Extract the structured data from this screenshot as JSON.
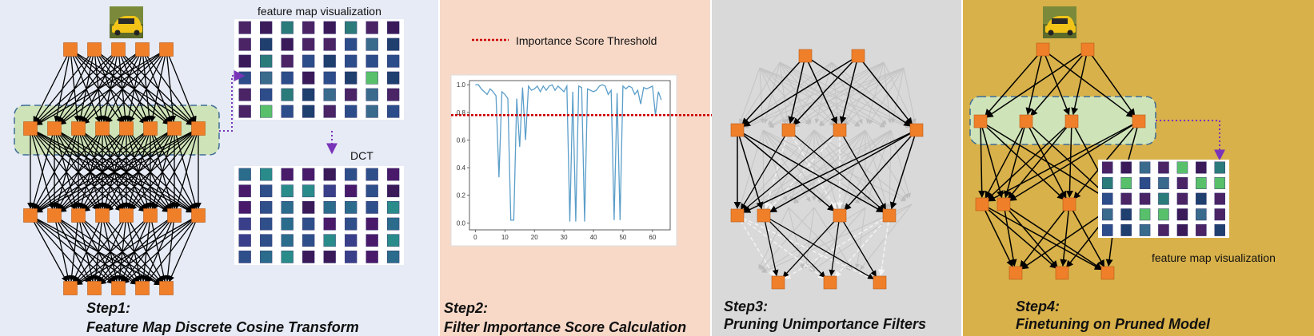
{
  "panels": {
    "step1": {
      "title": "Step1:",
      "subtitle": "Feature Map Discrete Cosine Transform",
      "feature_label": "feature map visualization",
      "dct_label": "DCT",
      "background": "#e6ebf6"
    },
    "step2": {
      "title": "Step2:",
      "subtitle": "Filter Importance Score Calculation",
      "legend_label": "Importance Score Threshold",
      "background": "#f8d9c8"
    },
    "step3": {
      "title": "Step3:",
      "subtitle": "Pruning Unimportance Filters",
      "background": "#d9d9d9"
    },
    "step4": {
      "title": "Step4:",
      "subtitle": "Finetuning on Pruned Model",
      "feature_label": "feature map visualization",
      "background": "#d8b14a"
    }
  },
  "colors": {
    "node": "#f07f2a",
    "highlight_fill": "#cfe3b8",
    "highlight_border": "#3f6c96",
    "arrow_dotted": "#7a34b8",
    "threshold": "#cc0000",
    "series": "#5b9ec9",
    "heatmap_bg": "#3b1a5a"
  },
  "icons": [
    "car-image-icon"
  ],
  "chart_data": {
    "type": "line",
    "title": "",
    "xlabel": "",
    "ylabel": "",
    "xlim": [
      -2,
      66
    ],
    "ylim": [
      -0.05,
      1.03
    ],
    "x_ticks": [
      0,
      10,
      20,
      30,
      40,
      50,
      60
    ],
    "y_ticks": [
      0.0,
      0.2,
      0.4,
      0.6,
      0.8,
      1.0
    ],
    "x_tick_labels": [
      "0",
      "10",
      "20",
      "30",
      "40",
      "50",
      "60"
    ],
    "y_tick_labels": [
      "0.0",
      "0.2",
      "0.4",
      "0.6",
      "0.8",
      "1.0"
    ],
    "threshold": 0.78,
    "series": [
      {
        "x": [
          0,
          1,
          2,
          3,
          4,
          5,
          6,
          7,
          8,
          9,
          10,
          11,
          12,
          13,
          14,
          15,
          16,
          17,
          18,
          19,
          20,
          21,
          22,
          23,
          24,
          25,
          26,
          27,
          28,
          29,
          30,
          31,
          32,
          33,
          34,
          35,
          36,
          37,
          38,
          39,
          40,
          41,
          42,
          43,
          44,
          45,
          46,
          47,
          48,
          49,
          50,
          51,
          52,
          53,
          54,
          55,
          56,
          57,
          58,
          59,
          60,
          61,
          62,
          63
        ],
        "values": [
          1.0,
          1.0,
          0.97,
          0.95,
          0.93,
          0.97,
          0.95,
          0.92,
          0.33,
          0.95,
          0.93,
          0.9,
          0.02,
          0.02,
          0.9,
          0.55,
          0.98,
          0.6,
          0.99,
          0.96,
          0.97,
          0.99,
          0.95,
          0.99,
          0.96,
          0.99,
          1.0,
          0.96,
          0.99,
          0.97,
          0.95,
          0.99,
          0.01,
          0.95,
          0.01,
          0.99,
          0.98,
          0.01,
          0.97,
          0.96,
          0.95,
          0.96,
          0.99,
          1.0,
          0.99,
          0.93,
          0.96,
          0.02,
          0.94,
          0.02,
          0.99,
          0.97,
          0.99,
          0.98,
          0.93,
          0.96,
          0.86,
          0.98,
          0.97,
          0.98,
          0.99,
          0.78,
          0.95,
          0.89
        ]
      }
    ]
  }
}
